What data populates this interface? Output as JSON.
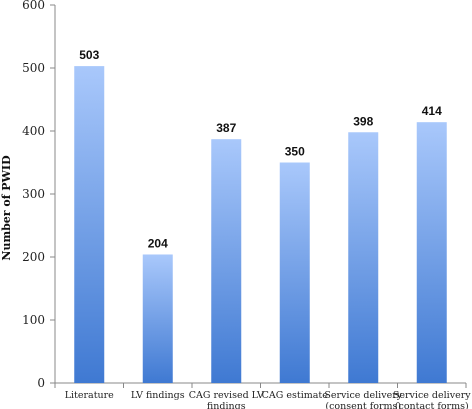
{
  "chart_data": {
    "type": "bar",
    "categories": [
      [
        "Literature"
      ],
      [
        "LV findings"
      ],
      [
        "CAG revised LV",
        "findings"
      ],
      [
        "CAG estimate"
      ],
      [
        "Service delivery",
        "(consent forms)"
      ],
      [
        "Service delivery",
        "(contact forms)"
      ]
    ],
    "values": [
      503,
      204,
      387,
      350,
      398,
      414
    ],
    "title": "",
    "xlabel": "",
    "ylabel": "Number of PWID",
    "ylim": [
      0,
      600
    ],
    "yticks": [
      0,
      100,
      200,
      300,
      400,
      500,
      600
    ],
    "grid": false,
    "colors": {
      "bar_top": "#a9c8fb",
      "bar_bottom": "#3f79d2",
      "axis": "#888888"
    }
  }
}
